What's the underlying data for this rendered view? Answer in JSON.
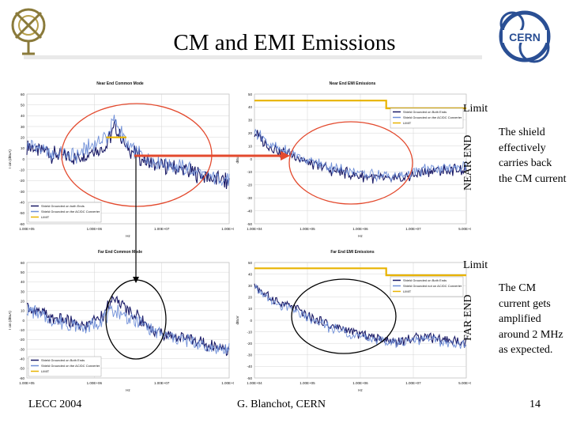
{
  "slide": {
    "title": "CM and EMI Emissions",
    "near_end_label": "NEAR END",
    "far_end_label": "FAR END",
    "limit_label_top": "Limit",
    "limit_label_bottom": "Limit",
    "note_top": "The shield effectively carries back the CM current",
    "note_bottom": "The CM current gets amplified around 2 MHz as expected.",
    "footer_left": "LECC 2004",
    "footer_center": "G. Blanchot, CERN",
    "page_number": "14",
    "logo_text": "CERN"
  },
  "colors": {
    "shield_both_ends": "#1a1a66",
    "shield_acdc": "#6f8fd8",
    "limit": "#e8b300",
    "highlight_ellipse": "#e34a2e",
    "arrow": "#e34a2e"
  },
  "chart_data": [
    {
      "type": "line",
      "title": "Near End Common Mode",
      "xlabel": "Hz",
      "ylabel": "I cm (dBuA)",
      "xscale": "log",
      "xlim": [
        100000,
        100000000
      ],
      "ylim": [
        -60,
        60
      ],
      "x_ticks": [
        "1.00E+05",
        "1.00E+06",
        "1.00E+07",
        "1.00E+08"
      ],
      "y_ticks": [
        "60",
        "50",
        "40",
        "30",
        "20",
        "10",
        "0",
        "-10",
        "-20",
        "-30",
        "-40",
        "-50",
        "-60"
      ],
      "legend": "bottom-left",
      "grid": true,
      "series": [
        {
          "name": "Shield Grounded on both Ends",
          "points": [
            [
              100000,
              12
            ],
            [
              150000,
              8
            ],
            [
              200000,
              6
            ],
            [
              300000,
              2
            ],
            [
              500000,
              0
            ],
            [
              700000,
              4
            ],
            [
              1000000,
              8
            ],
            [
              1500000,
              12
            ],
            [
              2000000,
              30
            ],
            [
              2500000,
              20
            ],
            [
              3000000,
              10
            ],
            [
              4000000,
              6
            ],
            [
              5000000,
              0
            ],
            [
              7000000,
              -4
            ],
            [
              10000000,
              -6
            ],
            [
              20000000,
              -10
            ],
            [
              40000000,
              -16
            ],
            [
              100000000,
              -22
            ]
          ]
        },
        {
          "name": "Shield Grounded on the AC/DC Converter",
          "points": [
            [
              100000,
              14
            ],
            [
              150000,
              10
            ],
            [
              200000,
              6
            ],
            [
              300000,
              4
            ],
            [
              500000,
              2
            ],
            [
              700000,
              8
            ],
            [
              1000000,
              14
            ],
            [
              1500000,
              20
            ],
            [
              2000000,
              36
            ],
            [
              2500000,
              24
            ],
            [
              3000000,
              14
            ],
            [
              4000000,
              8
            ],
            [
              5000000,
              2
            ],
            [
              7000000,
              -2
            ],
            [
              10000000,
              -4
            ],
            [
              20000000,
              -8
            ],
            [
              40000000,
              -14
            ],
            [
              100000000,
              -20
            ]
          ]
        },
        {
          "name": "LIMIT",
          "points": [
            [
              1500000,
              20
            ],
            [
              3000000,
              20
            ]
          ]
        }
      ]
    },
    {
      "type": "line",
      "title": "Near End EMI Emissions",
      "xlabel": "Hz",
      "ylabel": "dBuV",
      "xscale": "log",
      "xlim": [
        100000,
        500000000
      ],
      "ylim": [
        -50,
        50
      ],
      "x_ticks": [
        "1.00E+04",
        "1.00E+05",
        "1.00E+06",
        "1.00E+07",
        "5.00E+08"
      ],
      "y_ticks": [
        "50",
        "40",
        "30",
        "20",
        "10",
        "0",
        "-10",
        "-20",
        "-30",
        "-40",
        "-50"
      ],
      "legend": "top-right",
      "grid": true,
      "series": [
        {
          "name": "Shield Grounded on Both Ends",
          "points": [
            [
              100000,
              20
            ],
            [
              200000,
              8
            ],
            [
              500000,
              2
            ],
            [
              1000000,
              -4
            ],
            [
              2000000,
              -8
            ],
            [
              5000000,
              -12
            ],
            [
              10000000,
              -14
            ],
            [
              30000000,
              -16
            ],
            [
              100000000,
              -10
            ],
            [
              500000000,
              -8
            ]
          ]
        },
        {
          "name": "Shield Grounded on the AC/DC Converter",
          "points": [
            [
              100000,
              22
            ],
            [
              200000,
              10
            ],
            [
              500000,
              3
            ],
            [
              1000000,
              -2
            ],
            [
              2000000,
              -6
            ],
            [
              5000000,
              -10
            ],
            [
              10000000,
              -12
            ],
            [
              30000000,
              -14
            ],
            [
              100000000,
              -8
            ],
            [
              500000000,
              -6
            ]
          ]
        },
        {
          "name": "LIMIT",
          "points": [
            [
              100000,
              45
            ],
            [
              20000000,
              45
            ],
            [
              20000000,
              39
            ],
            [
              500000000,
              39
            ]
          ]
        }
      ]
    },
    {
      "type": "line",
      "title": "Far End Common Mode",
      "xlabel": "Hz",
      "ylabel": "I cm (dBuA)",
      "xscale": "log",
      "xlim": [
        100000,
        100000000
      ],
      "ylim": [
        -60,
        60
      ],
      "x_ticks": [
        "1.00E+05",
        "1.00E+06",
        "1.00E+07",
        "1.00E+08"
      ],
      "y_ticks": [
        "60",
        "50",
        "40",
        "30",
        "20",
        "10",
        "0",
        "-10",
        "-20",
        "-30",
        "-40",
        "-50",
        "-60"
      ],
      "legend": "bottom-left",
      "grid": true,
      "series": [
        {
          "name": "Shield Grounded on Both Ends",
          "points": [
            [
              100000,
              14
            ],
            [
              150000,
              8
            ],
            [
              200000,
              4
            ],
            [
              300000,
              0
            ],
            [
              500000,
              -4
            ],
            [
              700000,
              -6
            ],
            [
              1000000,
              0
            ],
            [
              1500000,
              10
            ],
            [
              2000000,
              22
            ],
            [
              3000000,
              12
            ],
            [
              5000000,
              0
            ],
            [
              7000000,
              -8
            ],
            [
              10000000,
              -14
            ],
            [
              20000000,
              -18
            ],
            [
              40000000,
              -24
            ],
            [
              100000000,
              -30
            ]
          ]
        },
        {
          "name": "Shield Grounded on the AC/DC Converter",
          "points": [
            [
              100000,
              12
            ],
            [
              150000,
              6
            ],
            [
              200000,
              2
            ],
            [
              300000,
              -2
            ],
            [
              500000,
              -6
            ],
            [
              700000,
              -8
            ],
            [
              1000000,
              -4
            ],
            [
              1500000,
              4
            ],
            [
              2000000,
              10
            ],
            [
              3000000,
              4
            ],
            [
              5000000,
              -4
            ],
            [
              7000000,
              -10
            ],
            [
              10000000,
              -16
            ],
            [
              20000000,
              -20
            ],
            [
              40000000,
              -26
            ],
            [
              100000000,
              -32
            ]
          ]
        },
        {
          "name": "LIMIT",
          "points": []
        }
      ]
    },
    {
      "type": "line",
      "title": "Far End EMI Emissions",
      "xlabel": "Hz",
      "ylabel": "dBuV",
      "xscale": "log",
      "xlim": [
        100000,
        500000000
      ],
      "ylim": [
        -50,
        50
      ],
      "x_ticks": [
        "1.00E+04",
        "1.00E+05",
        "1.00E+06",
        "1.00E+07",
        "5.00E+08"
      ],
      "y_ticks": [
        "50",
        "40",
        "30",
        "20",
        "10",
        "0",
        "-10",
        "-20",
        "-30",
        "-40",
        "-50"
      ],
      "legend": "top-right",
      "grid": true,
      "series": [
        {
          "name": "Shield Grounded on Both Ends",
          "points": [
            [
              100000,
              30
            ],
            [
              200000,
              18
            ],
            [
              500000,
              10
            ],
            [
              1000000,
              2
            ],
            [
              2000000,
              -4
            ],
            [
              5000000,
              -10
            ],
            [
              10000000,
              -14
            ],
            [
              30000000,
              -18
            ],
            [
              100000000,
              -14
            ],
            [
              500000000,
              -20
            ]
          ]
        },
        {
          "name": "Shield Grounded not on AC/DC Converter",
          "points": [
            [
              100000,
              28
            ],
            [
              200000,
              16
            ],
            [
              500000,
              8
            ],
            [
              1000000,
              0
            ],
            [
              2000000,
              -6
            ],
            [
              5000000,
              -12
            ],
            [
              10000000,
              -16
            ],
            [
              30000000,
              -20
            ],
            [
              100000000,
              -16
            ],
            [
              500000000,
              -22
            ]
          ]
        },
        {
          "name": "LIMIT",
          "points": [
            [
              100000,
              45
            ],
            [
              20000000,
              45
            ],
            [
              20000000,
              39
            ],
            [
              500000000,
              39
            ]
          ]
        }
      ]
    }
  ]
}
